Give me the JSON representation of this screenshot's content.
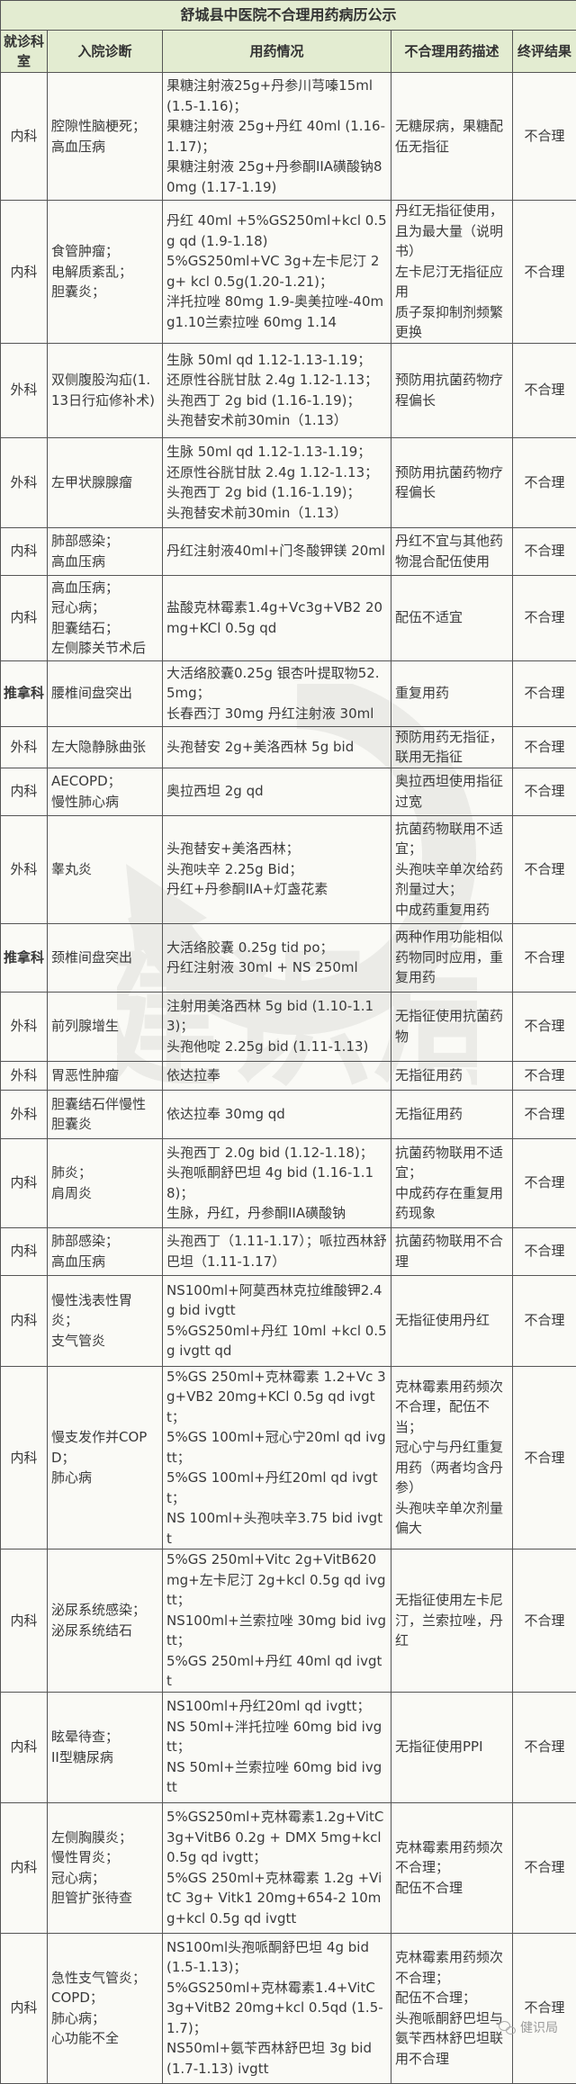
{
  "title": "舒城县中医院不合理用药病历公示",
  "headers": [
    "就诊科室",
    "入院诊断",
    "用药情况",
    "不合理用药描述",
    "终评结果"
  ],
  "watermark": "健识局",
  "rows": [
    {
      "dept": "内科",
      "diagnosis": [
        "腔隙性脑梗死；",
        "高血压病"
      ],
      "drugs": [
        "果糖注射液25g+丹参川芎嗪15ml(1.5-1.16)；",
        "果糖注射液 25g+丹红 40ml (1.16-1.17)；",
        "果糖注射液 25g+丹参酮IIA磺酸钠80mg (1.17-1.19)"
      ],
      "issue": [
        "无糖尿病，果糖配伍无指征"
      ],
      "result": "不合理"
    },
    {
      "dept": "内科",
      "diagnosis": [
        "食管肿瘤；",
        "电解质紊乱；",
        "胆囊炎；"
      ],
      "drugs": [
        "丹红 40ml +5%GS250ml+kcl 0.5g qd (1.9-1.18)",
        "5%GS250ml+VC 3g+左卡尼汀 2g+ kcl 0.5g(1.20-1.21)；",
        "泮托拉唑 80mg 1.9-奥美拉唑-40mg1.10兰索拉唑 60mg 1.14"
      ],
      "issue": [
        "丹红无指征使用，且为最大量（说明书）",
        "左卡尼汀无指征应用",
        "质子泵抑制剂频繁更换"
      ],
      "result": "不合理"
    },
    {
      "dept": "外科",
      "diagnosis": [
        "双侧腹股沟疝(1.13日行疝修补术)"
      ],
      "drugs": [
        "生脉 50ml qd 1.12-1.13-1.19；",
        "还原性谷胱甘肽 2.4g 1.12-1.13；",
        "头孢西丁 2g bid (1.16-1.19)；",
        "头孢替安术前30min（1.13）"
      ],
      "issue": [
        "预防用抗菌药物疗程偏长"
      ],
      "result": "不合理"
    },
    {
      "dept": "外科",
      "diagnosis": [
        "左甲状腺腺瘤"
      ],
      "drugs": [
        "生脉 50ml qd 1.12-1.13-1.19；",
        "还原性谷胱甘肽 2.4g 1.12-1.13；",
        "头孢西丁 2g bid (1.16-1.19)；",
        "头孢替安术前30min（1.13）"
      ],
      "issue": [
        "预防用抗菌药物疗程偏长"
      ],
      "result": "不合理"
    },
    {
      "dept": "内科",
      "diagnosis": [
        "肺部感染；",
        "高血压病"
      ],
      "drugs": [
        "丹红注射液40ml+门冬酸钾镁 20ml"
      ],
      "issue": [
        "丹红不宜与其他药物混合配伍使用"
      ],
      "result": "不合理"
    },
    {
      "dept": "内科",
      "diagnosis": [
        "高血压病；",
        "冠心病；",
        "胆囊结石；",
        "左侧膝关节术后"
      ],
      "drugs": [
        "盐酸克林霉素1.4g+Vc3g+VB2 20mg+KCl 0.5g qd"
      ],
      "issue": [
        "配伍不适宜"
      ],
      "result": "不合理"
    },
    {
      "dept": "推拿科",
      "diagnosis": [
        "腰椎间盘突出"
      ],
      "drugs": [
        "大活络胶囊0.25g 银杏叶提取物52.5mg；",
        "长春西汀 30mg 丹红注射液 30ml"
      ],
      "issue": [
        "重复用药"
      ],
      "result": "不合理"
    },
    {
      "dept": "外科",
      "diagnosis": [
        "左大隐静脉曲张"
      ],
      "drugs": [
        "头孢替安 2g+美洛西林 5g bid"
      ],
      "issue": [
        "预防用药无指征，联用无指征"
      ],
      "result": "不合理"
    },
    {
      "dept": "内科",
      "diagnosis": [
        "AECOPD；",
        "慢性肺心病"
      ],
      "drugs": [
        "奥拉西坦 2g qd"
      ],
      "issue": [
        "奥拉西坦使用指征过宽"
      ],
      "result": "不合理"
    },
    {
      "dept": "外科",
      "diagnosis": [
        "睾丸炎"
      ],
      "drugs": [
        "头孢替安+美洛西林；",
        "头孢呋辛 2.25g Bid；",
        "丹红+丹参酮IIA+灯盏花素"
      ],
      "issue": [
        "抗菌药物联用不适宜；",
        "头孢呋辛单次给药剂量过大；",
        "中成药重复用药"
      ],
      "result": "不合理"
    },
    {
      "dept": "推拿科",
      "diagnosis": [
        "颈椎间盘突出"
      ],
      "drugs": [
        "大活络胶囊 0.25g tid po；",
        "丹红注射液 30ml + NS 250ml"
      ],
      "issue": [
        "两种作用功能相似药物同时应用，重复用药"
      ],
      "result": "不合理"
    },
    {
      "dept": "外科",
      "diagnosis": [
        "前列腺增生"
      ],
      "drugs": [
        "注射用美洛西林 5g bid (1.10-1.13)；",
        "头孢他啶 2.25g bid (1.11-1.13)"
      ],
      "issue": [
        "无指征使用抗菌药物"
      ],
      "result": "不合理"
    },
    {
      "dept": "外科",
      "diagnosis": [
        "胃恶性肿瘤"
      ],
      "drugs": [
        "依达拉奉"
      ],
      "issue": [
        "无指征用药"
      ],
      "result": "不合理"
    },
    {
      "dept": "外科",
      "diagnosis": [
        "胆囊结石伴慢性胆囊炎"
      ],
      "drugs": [
        "依达拉奉 30mg qd"
      ],
      "issue": [
        "无指征用药"
      ],
      "result": "不合理"
    },
    {
      "dept": "内科",
      "diagnosis": [
        "肺炎；",
        "肩周炎"
      ],
      "drugs": [
        "头孢西丁 2.0g bid (1.12-1.18)；",
        "头孢哌酮舒巴坦 4g bid (1.16-1.18)；",
        "生脉，丹红，丹参酮IIA磺酸钠"
      ],
      "issue": [
        "抗菌药物联用不适宜；",
        "中成药存在重复用药现象"
      ],
      "result": "不合理"
    },
    {
      "dept": "内科",
      "diagnosis": [
        "肺部感染；",
        "高血压病"
      ],
      "drugs": [
        "头孢西丁（1.11-1.17）；哌拉西林舒巴坦（1.11-1.17）"
      ],
      "issue": [
        "抗菌药物联用不合理"
      ],
      "result": "不合理"
    },
    {
      "dept": "内科",
      "diagnosis": [
        "慢性浅表性胃炎；",
        "支气管炎"
      ],
      "drugs": [
        "NS100ml+阿莫西林克拉维酸钾2.4g bid ivgtt",
        "5%GS250ml+丹红 10ml +kcl 0.5g ivgtt qd"
      ],
      "issue": [
        "无指征使用丹红"
      ],
      "result": "不合理"
    },
    {
      "dept": "内科",
      "diagnosis": [
        "慢支发作并COPD；",
        "肺心病"
      ],
      "drugs": [
        "5%GS 250ml+克林霉素 1.2+Vc 3g+VB2 20mg+KCl 0.5g qd ivgtt；",
        "5%GS 100ml+冠心宁20ml qd ivgtt；",
        "5%GS 100ml+丹红20ml qd ivgtt；",
        "NS 100ml+头孢呋辛3.75 bid ivgtt"
      ],
      "issue": [
        "克林霉素用药频次不合理，配伍不当；",
        "冠心宁与丹红重复用药（两者均含丹参）",
        "头孢呋辛单次剂量偏大"
      ],
      "result": "不合理"
    },
    {
      "dept": "内科",
      "diagnosis": [
        "泌尿系统感染；",
        "泌尿系统结石"
      ],
      "drugs": [
        "5%GS 250ml+Vitc 2g+VitB620mg+左卡尼汀 2g+kcl 0.5g qd ivgtt；",
        "NS100ml+兰索拉唑 30mg bid ivgtt；",
        "5%GS 250ml+丹红 40ml qd ivgtt"
      ],
      "issue": [
        "无指征使用左卡尼汀，兰索拉唑，丹红"
      ],
      "result": "不合理"
    },
    {
      "dept": "内科",
      "diagnosis": [
        "眩晕待查；",
        "II型糖尿病"
      ],
      "drugs": [
        "NS100ml+丹红20ml qd ivgtt；",
        "NS 50ml+泮托拉唑 60mg bid ivgtt；",
        "NS 50ml+兰索拉唑 60mg bid ivgtt"
      ],
      "issue": [
        "无指征使用PPI"
      ],
      "result": "不合理"
    },
    {
      "dept": "内科",
      "diagnosis": [
        "左侧胸膜炎；",
        "慢性胃炎；",
        "冠心病；",
        "胆管扩张待查"
      ],
      "drugs": [
        "5%GS250ml+克林霉素1.2g+VitC3g+VitB6 0.2g + DMX 5mg+kcl 0.5g qd ivgtt；",
        "5%GS 250ml+克林霉素 1.2g +VitC 3g+ Vitk1 20mg+654-2 10mg+kcl 0.5g qd ivgtt"
      ],
      "issue": [
        "克林霉素用药频次不合理；",
        "配伍不合理"
      ],
      "result": "不合理"
    },
    {
      "dept": "内科",
      "diagnosis": [
        "急性支气管炎；",
        "COPD；",
        "肺心病；",
        "心功能不全"
      ],
      "drugs": [
        "NS100ml头孢哌酮舒巴坦 4g bid (1.5-1.13)；",
        "5%GS250ml+克林霉素1.4+VitC 3g+VitB2 20mg+kcl 0.5qd (1.5-1.7)；",
        "NS50ml+氨苄西林舒巴坦 3g bid (1.7-1.13) ivgtt"
      ],
      "issue": [
        "克林霉素用药频次不合理；",
        "配伍不合理；",
        "头孢哌酮舒巴坦与氨苄西林舒巴坦联用不合理"
      ],
      "result": "不合理"
    }
  ]
}
